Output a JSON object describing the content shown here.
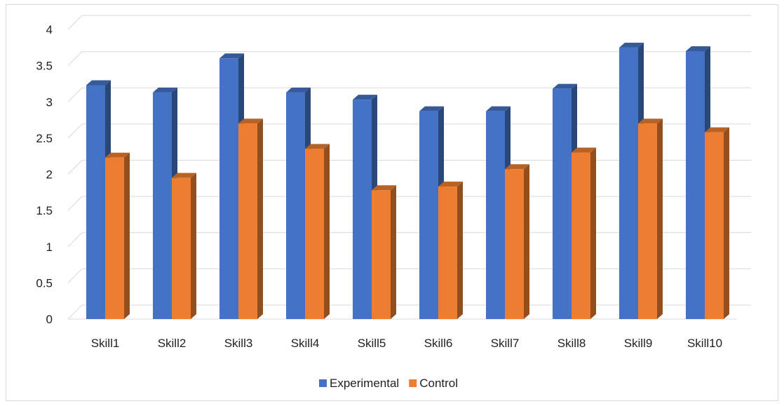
{
  "chart_data": {
    "type": "bar",
    "style": "3d-clustered-column",
    "categories": [
      "Skill1",
      "Skill2",
      "Skill3",
      "Skill4",
      "Skill5",
      "Skill6",
      "Skill7",
      "Skill8",
      "Skill9",
      "Skill10"
    ],
    "series": [
      {
        "name": "Experimental",
        "color": "#4472C4",
        "values": [
          3.23,
          3.13,
          3.6,
          3.13,
          3.03,
          2.87,
          2.87,
          3.18,
          3.75,
          3.7
        ]
      },
      {
        "name": "Control",
        "color": "#ED7D31",
        "values": [
          2.23,
          1.95,
          2.7,
          2.35,
          1.78,
          1.83,
          2.07,
          2.3,
          2.7,
          2.58
        ]
      }
    ],
    "title": "",
    "xlabel": "",
    "ylabel": "",
    "ylim": [
      0,
      4
    ],
    "yticks": [
      "0",
      "0.5",
      "1",
      "1.5",
      "2",
      "2.5",
      "3",
      "3.5",
      "4"
    ],
    "grid": true,
    "legend": "bottom"
  }
}
